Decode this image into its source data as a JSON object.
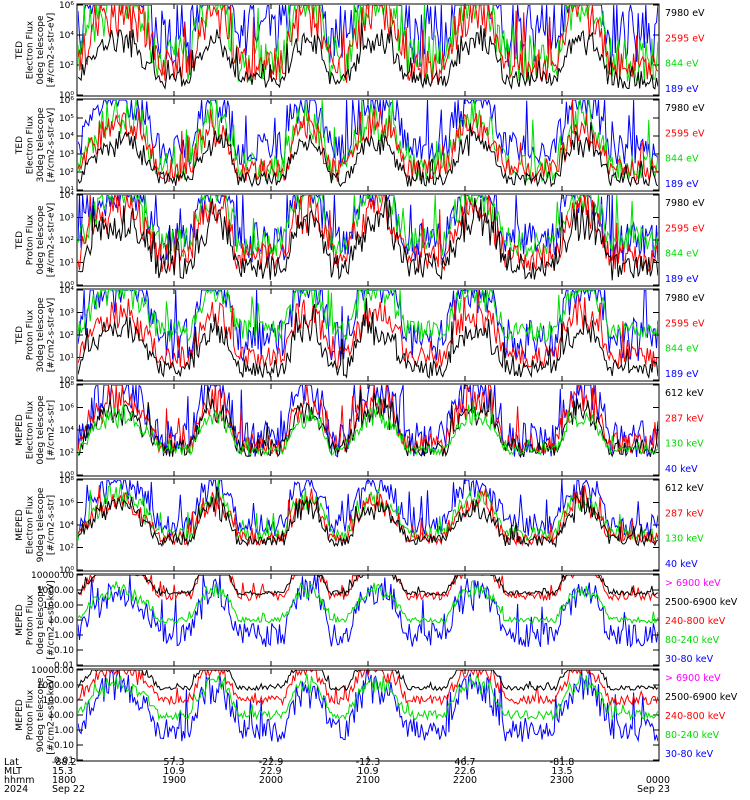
{
  "colors": {
    "blue": "#0000ff",
    "red": "#ff0000",
    "green": "#00dd00",
    "black": "#000000",
    "magenta": "#ff00ff"
  },
  "chart_data": [
    {
      "type": "line",
      "ylabel": [
        "TED",
        "Electron Flux",
        "0deg telescope",
        "[#/cm2-s-str-eV]"
      ],
      "yscale": "log",
      "yticks": [
        "10⁰",
        "10²",
        "10⁴",
        "10⁶"
      ],
      "legend": [
        {
          "label": "7980 eV",
          "color": "#000000"
        },
        {
          "label": "2595 eV",
          "color": "#ff0000"
        },
        {
          "label": "844 eV",
          "color": "#00dd00"
        },
        {
          "label": "189 eV",
          "color": "#0000ff"
        }
      ],
      "series": [
        {
          "color": "#0000ff",
          "base": 2.0,
          "amp": 2.2,
          "hump": [
            0.45,
            0.4,
            0.5,
            0.35,
            0.4
          ]
        },
        {
          "color": "#00dd00",
          "base": 1.2,
          "amp": 1.6,
          "hump": [
            0.2,
            0.15,
            0.2,
            0.2,
            0.3
          ]
        },
        {
          "color": "#ff0000",
          "base": 1.0,
          "amp": 1.2,
          "hump": [
            0.1,
            0.05,
            0.1,
            0.05,
            0.2
          ]
        },
        {
          "color": "#000000",
          "base": 0.5,
          "amp": 0.6,
          "hump": [
            0.0,
            0.0,
            0.0,
            0.0,
            0.2
          ]
        }
      ]
    },
    {
      "type": "line",
      "ylabel": [
        "TED",
        "Electron Flux",
        "30deg telescope",
        "[#/cm2-s-str-eV]"
      ],
      "yscale": "log",
      "yticks": [
        "10¹",
        "10²",
        "10³",
        "10⁴",
        "10⁵",
        "10⁶"
      ],
      "legend": [
        {
          "label": "7980 eV",
          "color": "#000000"
        },
        {
          "label": "2595 eV",
          "color": "#ff0000"
        },
        {
          "label": "844 eV",
          "color": "#00dd00"
        },
        {
          "label": "189 eV",
          "color": "#0000ff"
        }
      ],
      "series": [
        {
          "color": "#0000ff",
          "base": 2.3,
          "amp": 1.8,
          "hump": [
            0.4,
            0.4,
            0.4,
            0.35,
            0.4
          ]
        },
        {
          "color": "#00dd00",
          "base": 1.3,
          "amp": 1.6,
          "hump": [
            0.2,
            0.15,
            0.2,
            0.2,
            0.3
          ]
        },
        {
          "color": "#ff0000",
          "base": 1.1,
          "amp": 1.3,
          "hump": [
            0.1,
            0.05,
            0.1,
            0.05,
            0.2
          ]
        },
        {
          "color": "#000000",
          "base": 0.6,
          "amp": 0.8,
          "hump": [
            0.0,
            0.0,
            0.0,
            0.0,
            0.1
          ]
        }
      ]
    },
    {
      "type": "line",
      "ylabel": [
        "TED",
        "Proton Flux",
        "0deg telescope",
        "[#/cm2-s-str-eV]"
      ],
      "yscale": "log",
      "yticks": [
        "10⁰",
        "10¹",
        "10²",
        "10³",
        "10⁴"
      ],
      "legend": [
        {
          "label": "7980 eV",
          "color": "#000000"
        },
        {
          "label": "2595 eV",
          "color": "#ff0000"
        },
        {
          "label": "844 eV",
          "color": "#00dd00"
        },
        {
          "label": "189 eV",
          "color": "#0000ff"
        }
      ],
      "series": [
        {
          "color": "#0000ff",
          "base": 1.9,
          "amp": 1.8,
          "hump": [
            0.3,
            0.3,
            0.3,
            0.3,
            0.3
          ]
        },
        {
          "color": "#00dd00",
          "base": 1.9,
          "amp": 1.4,
          "hump": [
            0.2,
            0.2,
            0.2,
            0.2,
            0.2
          ]
        },
        {
          "color": "#ff0000",
          "base": 1.2,
          "amp": 1.3,
          "hump": [
            0.1,
            0.1,
            0.1,
            0.1,
            0.2
          ]
        },
        {
          "color": "#000000",
          "base": 0.8,
          "amp": 1.2,
          "hump": [
            0.0,
            0.0,
            0.0,
            0.0,
            0.1
          ]
        }
      ]
    },
    {
      "type": "line",
      "ylabel": [
        "TED",
        "Proton Flux",
        "30deg telescope",
        "[#/cm2-s-str-eV]"
      ],
      "yscale": "log",
      "yticks": [
        "10⁰",
        "10¹",
        "10²",
        "10³",
        "10⁴"
      ],
      "legend": [
        {
          "label": "7980 eV",
          "color": "#000000"
        },
        {
          "label": "2595 eV",
          "color": "#ff0000"
        },
        {
          "label": "844 eV",
          "color": "#00dd00"
        },
        {
          "label": "189 eV",
          "color": "#0000ff"
        }
      ],
      "series": [
        {
          "color": "#0000ff",
          "base": 1.8,
          "amp": 1.9,
          "hump": [
            0.3,
            0.3,
            0.3,
            0.3,
            0.3
          ]
        },
        {
          "color": "#00dd00",
          "base": 2.2,
          "amp": 1.0,
          "hump": [
            0.2,
            0.2,
            0.2,
            0.2,
            0.2
          ]
        },
        {
          "color": "#ff0000",
          "base": 1.0,
          "amp": 1.0,
          "hump": [
            0.1,
            0.1,
            0.1,
            0.1,
            0.1
          ]
        },
        {
          "color": "#000000",
          "base": 0.5,
          "amp": 0.8,
          "hump": [
            0.0,
            0.0,
            0.0,
            0.0,
            0.1
          ]
        }
      ]
    },
    {
      "type": "line",
      "ylabel": [
        "MEPED",
        "Electron Flux",
        "0deg telescope",
        "[#/cm2-s-str]"
      ],
      "yscale": "log",
      "yticks": [
        "10⁰",
        "10²",
        "10⁴",
        "10⁶",
        "10⁸"
      ],
      "legend": [
        {
          "label": "612 keV",
          "color": "#000000"
        },
        {
          "label": "287 keV",
          "color": "#ff0000"
        },
        {
          "label": "130 keV",
          "color": "#00dd00"
        },
        {
          "label": "40 keV",
          "color": "#0000ff"
        }
      ],
      "series": [
        {
          "color": "#0000ff",
          "base": 1.6,
          "amp": 1.6,
          "hump": [
            0.1,
            0.1,
            0.1,
            0.2,
            0.4
          ]
        },
        {
          "color": "#ff0000",
          "base": 1.4,
          "amp": 1.0,
          "hump": [
            0.0,
            0.0,
            0.05,
            0.15,
            0.5
          ]
        },
        {
          "color": "#000000",
          "base": 1.2,
          "amp": 0.8,
          "hump": [
            0.0,
            0.0,
            0.0,
            0.1,
            0.4
          ]
        },
        {
          "color": "#00dd00",
          "base": 1.1,
          "amp": 0.4,
          "hump": [
            0.0,
            0.0,
            0.0,
            0.0,
            0.1
          ]
        }
      ]
    },
    {
      "type": "line",
      "ylabel": [
        "MEPED",
        "Electron Flux",
        "90deg telescope",
        "[#/cm2-s-str]"
      ],
      "yscale": "log",
      "yticks": [
        "10⁰",
        "10²",
        "10⁴",
        "10⁶",
        "10⁸"
      ],
      "legend": [
        {
          "label": "612 keV",
          "color": "#000000"
        },
        {
          "label": "287 keV",
          "color": "#ff0000"
        },
        {
          "label": "130 keV",
          "color": "#00dd00"
        },
        {
          "label": "40 keV",
          "color": "#0000ff"
        }
      ],
      "series": [
        {
          "color": "#0000ff",
          "base": 2.0,
          "amp": 1.0,
          "hump": [
            0.8,
            0.8,
            0.8,
            0.8,
            0.8
          ]
        },
        {
          "color": "#00dd00",
          "base": 1.6,
          "amp": 0.6,
          "hump": [
            0.75,
            0.75,
            0.75,
            0.75,
            0.75
          ]
        },
        {
          "color": "#ff0000",
          "base": 1.4,
          "amp": 0.6,
          "hump": [
            0.7,
            0.7,
            0.7,
            0.7,
            0.7
          ]
        },
        {
          "color": "#000000",
          "base": 1.3,
          "amp": 0.5,
          "hump": [
            0.4,
            0.4,
            0.4,
            0.4,
            0.5
          ]
        }
      ]
    },
    {
      "type": "line",
      "ylabel": [
        "MEPED",
        "Proton Flux",
        "0deg telescope",
        "[#/cm2-s-str-keV]"
      ],
      "yscale": "log",
      "yticks": [
        "0.01",
        "0.10",
        "1.00",
        "10.00",
        "100.00",
        "1000.00",
        "10000.00"
      ],
      "legend": [
        {
          "label": "> 6900 keV",
          "color": "#ff00ff"
        },
        {
          "label": "2500-6900 keV",
          "color": "#000000"
        },
        {
          "label": "240-800 keV",
          "color": "#ff0000"
        },
        {
          "label": "80-240 keV",
          "color": "#00dd00"
        },
        {
          "label": "30-80 keV",
          "color": "#0000ff"
        }
      ],
      "series": [
        {
          "color": "#0000ff",
          "base": 2.0,
          "amp": 1.6,
          "hump": [
            0.5,
            0.5,
            0.5,
            0.5,
            0.5
          ]
        },
        {
          "color": "#00dd00",
          "base": 3.0,
          "amp": 0.4,
          "hump": [
            0.15,
            0.15,
            0.15,
            0.15,
            0.15
          ]
        },
        {
          "color": "#ff0000",
          "base": 4.6,
          "amp": 0.6,
          "hump": [
            0.0,
            0.0,
            0.0,
            0.0,
            0.2
          ]
        },
        {
          "color": "#000000",
          "base": 4.8,
          "amp": 0.3,
          "hump": [
            0.0,
            0.0,
            0.0,
            0.05,
            0.15
          ]
        }
      ]
    },
    {
      "type": "line",
      "ylabel": [
        "MEPED",
        "Proton Flux",
        "90deg telescope",
        "[#/cm2-s-str-keV]"
      ],
      "yscale": "log",
      "yticks": [
        "0.01",
        "0.10",
        "1.00",
        "10.00",
        "100.00",
        "1000.00",
        "10000.00"
      ],
      "legend": [
        {
          "label": "> 6900 keV",
          "color": "#ff00ff"
        },
        {
          "label": "2500-6900 keV",
          "color": "#000000"
        },
        {
          "label": "240-800 keV",
          "color": "#ff0000"
        },
        {
          "label": "80-240 keV",
          "color": "#00dd00"
        },
        {
          "label": "30-80 keV",
          "color": "#0000ff"
        }
      ],
      "series": [
        {
          "color": "#0000ff",
          "base": 2.0,
          "amp": 1.6,
          "hump": [
            0.55,
            0.55,
            0.55,
            0.55,
            0.55
          ]
        },
        {
          "color": "#00dd00",
          "base": 3.0,
          "amp": 0.6,
          "hump": [
            0.25,
            0.25,
            0.25,
            0.25,
            0.25
          ]
        },
        {
          "color": "#ff0000",
          "base": 4.0,
          "amp": 0.6,
          "hump": [
            0.2,
            0.2,
            0.2,
            0.2,
            0.25
          ]
        },
        {
          "color": "#000000",
          "base": 4.8,
          "amp": 0.3,
          "hump": [
            0.0,
            0.0,
            0.0,
            0.05,
            0.2
          ]
        }
      ]
    }
  ],
  "xaxis": {
    "row_labels": [
      "Lat",
      "MLT",
      "hhmm",
      "2024"
    ],
    "columns": [
      {
        "lat": "-88.2",
        "mlt": "15.3",
        "hhmm": "1800",
        "date": "Sep 22"
      },
      {
        "lat": "57.3",
        "mlt": "10.9",
        "hhmm": "1900",
        "date": ""
      },
      {
        "lat": "-22.9",
        "mlt": "22.9",
        "hhmm": "2000",
        "date": ""
      },
      {
        "lat": "-12.3",
        "mlt": "10.9",
        "hhmm": "2100",
        "date": ""
      },
      {
        "lat": "46.7",
        "mlt": "22.6",
        "hhmm": "2200",
        "date": ""
      },
      {
        "lat": "-81.8",
        "mlt": "13.5",
        "hhmm": "2300",
        "date": ""
      },
      {
        "lat": "",
        "mlt": "",
        "hhmm": "0000",
        "date": "Sep 23"
      }
    ]
  }
}
